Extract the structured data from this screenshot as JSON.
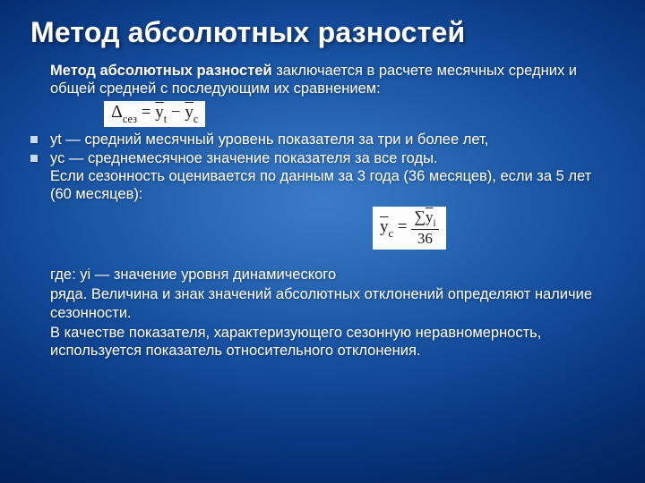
{
  "title": "Метод абсолютных разностей",
  "intro_bold": "Метод абсолютных разностей",
  "intro_rest": " заключается в расчете месячных средних и общей средней с последующим их сравнением:",
  "formula1": {
    "lhs_sym": "Δ",
    "lhs_sub": "сез",
    "eq": " = ",
    "r1_bar": "y",
    "r1_sub": "t",
    "minus": " − ",
    "r2_bar": "y",
    "r2_sub": "c"
  },
  "bullets": [
    "уt — средний месячный уровень показателя за три и более лет,",
    "ус — среднемесячное значение показателя  за все годы."
  ],
  "after_bullets": "Если сезонность оценивается по данным за 3 года (36 месяцев), если за 5 лет (60 месяцев):",
  "formula2": {
    "lhs_bar": "y",
    "lhs_sub": "c",
    "eq": " = ",
    "num_sigma": "∑",
    "num_bar": "y",
    "num_sub": "i",
    "den": "36"
  },
  "tail1": "где: уi — значение уровня динамического",
  "tail2": "ряда. Величина и знак значений абсолютных отклонений определяют наличие сезонности.",
  "tail3": "В качестве показателя, характеризующего сезонную неравномерность, используется показатель относительного отклонения.",
  "colors": {
    "text": "#ffffff",
    "formula_bg": "#fcfcfc",
    "formula_fg": "#1a1a1a",
    "bullet": "#c9d8ec"
  },
  "fonts": {
    "body_family": "Verdana",
    "title_size_pt": 32,
    "body_size_pt": 16.5,
    "formula_family": "Times New Roman"
  }
}
